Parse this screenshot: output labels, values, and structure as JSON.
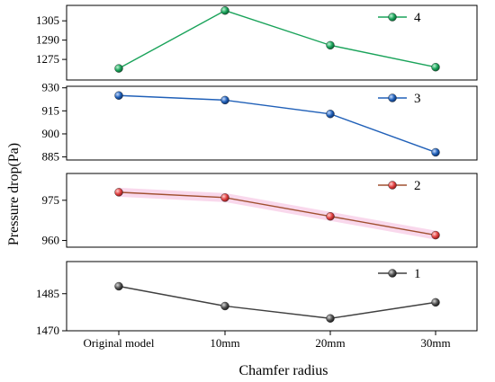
{
  "chart_data": {
    "type": "line",
    "categories": [
      "Original model",
      "10mm",
      "20mm",
      "30mm"
    ],
    "xlabel": "Chamfer radius",
    "ylabel": "Pressure drop(Pa)",
    "grid": false,
    "legend_placement": "top-right of each panel",
    "panels": [
      {
        "series": {
          "name": "4",
          "values": [
            1268,
            1313,
            1286,
            1269
          ],
          "color": "#1aa35a"
        },
        "ylim": [
          1259,
          1317
        ],
        "yticks": [
          1275,
          1290,
          1305
        ]
      },
      {
        "series": {
          "name": "3",
          "values": [
            925,
            922,
            913,
            888
          ],
          "color": "#2060b8"
        },
        "ylim": [
          883,
          931
        ],
        "yticks": [
          885,
          900,
          915,
          930
        ]
      },
      {
        "series": {
          "name": "2",
          "values": [
            978,
            976,
            969,
            962
          ],
          "color": "#a05030",
          "marker_color": "#e04040",
          "band_color": "#f6c8e4"
        },
        "ylim": [
          957.5,
          985
        ],
        "yticks": [
          960,
          975
        ]
      },
      {
        "series": {
          "name": "1",
          "values": [
            1488,
            1480,
            1475,
            1481.5
          ],
          "color": "#404040"
        },
        "ylim": [
          1470,
          1498
        ],
        "yticks": [
          1470,
          1485
        ]
      }
    ]
  }
}
